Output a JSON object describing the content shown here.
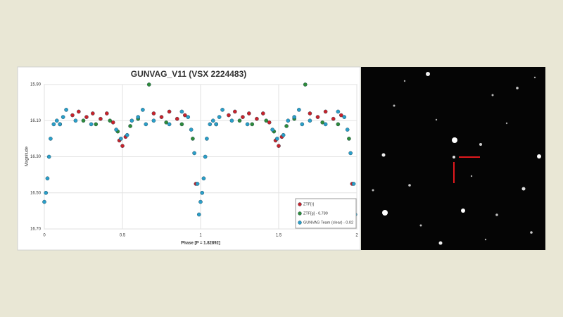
{
  "chart_data": {
    "type": "scatter",
    "title": "GUNVAG_V11 (VSX 2224483)",
    "x_label": "Phase [P = 1.82892]",
    "y_label": "Magnitude",
    "xlim": [
      0,
      2
    ],
    "xticks": [
      0,
      0.5,
      1,
      1.5,
      2
    ],
    "ylim": [
      16.7,
      15.9
    ],
    "yticks": [
      {
        "value": 16.7,
        "label": "16.70"
      },
      {
        "value": 16.5,
        "label": "16.50"
      },
      {
        "value": 16.3,
        "label": "16.30"
      },
      {
        "value": 16.1,
        "label": "16.10"
      },
      {
        "value": 15.9,
        "label": "15.90"
      }
    ],
    "grid": true,
    "legend": "lower right",
    "series": [
      {
        "name": "ZTF[r]",
        "color": "#c8232b",
        "x": [
          0.18,
          0.22,
          0.27,
          0.31,
          0.36,
          0.4,
          0.44,
          0.48,
          0.5,
          0.52,
          0.7,
          0.75,
          0.8,
          0.85,
          0.9,
          0.97,
          1.18,
          1.22,
          1.27,
          1.31,
          1.36,
          1.4,
          1.44,
          1.48,
          1.5,
          1.52,
          1.7,
          1.75,
          1.8,
          1.85,
          1.9,
          1.97
        ],
        "values": [
          16.07,
          16.05,
          16.08,
          16.06,
          16.09,
          16.06,
          16.11,
          16.21,
          16.24,
          16.19,
          16.06,
          16.08,
          16.05,
          16.09,
          16.07,
          16.45,
          16.07,
          16.05,
          16.08,
          16.06,
          16.09,
          16.06,
          16.11,
          16.21,
          16.24,
          16.19,
          16.06,
          16.08,
          16.05,
          16.09,
          16.07,
          16.45
        ]
      },
      {
        "name": "ZTF[g] - 0.789",
        "color": "#2e8b3a",
        "x": [
          0.1,
          0.25,
          0.33,
          0.42,
          0.47,
          0.55,
          0.6,
          0.67,
          0.78,
          0.88,
          0.95,
          1.1,
          1.25,
          1.33,
          1.42,
          1.47,
          1.55,
          1.6,
          1.67,
          1.78,
          1.88,
          1.95
        ],
        "values": [
          16.12,
          16.1,
          16.12,
          16.1,
          16.16,
          16.13,
          16.09,
          15.9,
          16.11,
          16.12,
          16.2,
          16.12,
          16.1,
          16.12,
          16.1,
          16.16,
          16.13,
          16.09,
          15.9,
          16.11,
          16.12,
          16.2
        ]
      },
      {
        "name": "GUNVAG Team (clear) - 0.02",
        "color": "#2a9fc9",
        "x": [
          0.0,
          0.01,
          0.02,
          0.03,
          0.04,
          0.06,
          0.08,
          0.1,
          0.12,
          0.14,
          0.2,
          0.3,
          0.46,
          0.49,
          0.53,
          0.56,
          0.6,
          0.63,
          0.65,
          0.7,
          0.8,
          0.88,
          0.92,
          0.94,
          0.96,
          0.98,
          0.99,
          1.0,
          1.01,
          1.02,
          1.03,
          1.04,
          1.06,
          1.08,
          1.1,
          1.12,
          1.14,
          1.2,
          1.3,
          1.46,
          1.49,
          1.53,
          1.56,
          1.6,
          1.63,
          1.65,
          1.7,
          1.8,
          1.88,
          1.92,
          1.94,
          1.96,
          1.98,
          1.99
        ],
        "values": [
          16.55,
          16.5,
          16.42,
          16.3,
          16.2,
          16.12,
          16.1,
          16.12,
          16.08,
          16.04,
          16.1,
          16.12,
          16.15,
          16.2,
          16.18,
          16.1,
          16.08,
          16.04,
          16.12,
          16.1,
          16.12,
          16.05,
          16.08,
          16.15,
          16.28,
          16.45,
          16.62,
          16.55,
          16.5,
          16.42,
          16.3,
          16.2,
          16.12,
          16.1,
          16.12,
          16.08,
          16.04,
          16.1,
          16.12,
          16.15,
          16.2,
          16.18,
          16.1,
          16.08,
          16.04,
          16.12,
          16.1,
          16.12,
          16.05,
          16.08,
          16.15,
          16.28,
          16.45,
          16.62
        ]
      }
    ]
  }
}
